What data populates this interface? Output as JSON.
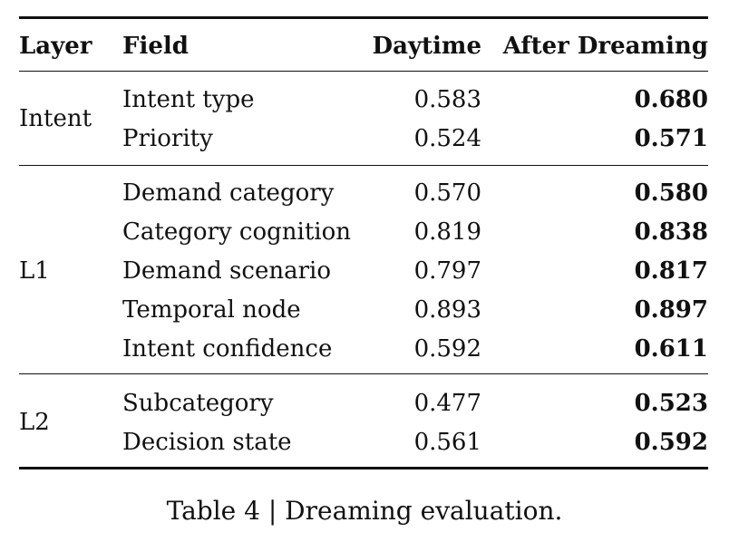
{
  "table": {
    "headers": {
      "layer": "Layer",
      "field": "Field",
      "daytime": "Daytime",
      "after": "After Dreaming"
    },
    "groups": [
      {
        "layer": "Intent",
        "rows": [
          {
            "field": "Intent type",
            "daytime": "0.583",
            "after": "0.680"
          },
          {
            "field": "Priority",
            "daytime": "0.524",
            "after": "0.571"
          }
        ]
      },
      {
        "layer": "L1",
        "rows": [
          {
            "field": "Demand category",
            "daytime": "0.570",
            "after": "0.580"
          },
          {
            "field": "Category cognition",
            "daytime": "0.819",
            "after": "0.838"
          },
          {
            "field": "Demand scenario",
            "daytime": "0.797",
            "after": "0.817"
          },
          {
            "field": "Temporal node",
            "daytime": "0.893",
            "after": "0.897"
          },
          {
            "field": "Intent confidence",
            "daytime": "0.592",
            "after": "0.611"
          }
        ]
      },
      {
        "layer": "L2",
        "rows": [
          {
            "field": "Subcategory",
            "daytime": "0.477",
            "after": "0.523"
          },
          {
            "field": "Decision state",
            "daytime": "0.561",
            "after": "0.592"
          }
        ]
      }
    ]
  },
  "caption": "Table 4 | Dreaming evaluation."
}
